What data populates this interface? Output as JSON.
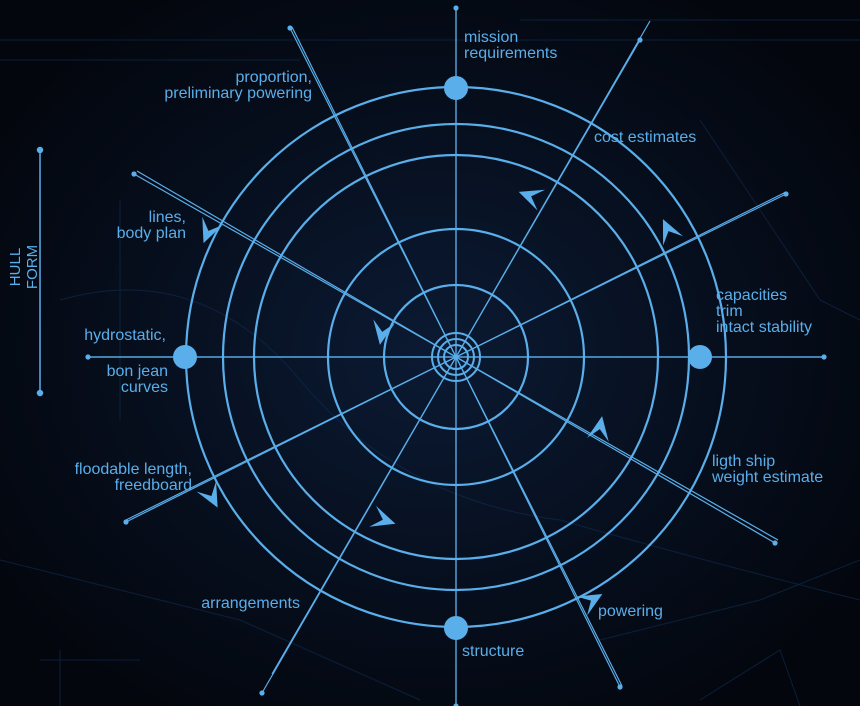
{
  "side_label": "HULL FORM",
  "labels": {
    "mission": [
      "mission",
      "requirements"
    ],
    "cost": [
      "cost estimates"
    ],
    "capacities": [
      "capacities",
      "trim",
      "intact stability"
    ],
    "lightship": [
      "ligth ship",
      "weight estimate"
    ],
    "powering": [
      "powering"
    ],
    "structure": [
      "structure"
    ],
    "arrangements": [
      "arrangements"
    ],
    "floodable": [
      "floodable length,",
      "freedboard"
    ],
    "hydrostatic": [
      "hydrostatic,"
    ],
    "bonjean": [
      "bon jean",
      "curves"
    ],
    "lines": [
      "lines,",
      "body plan"
    ],
    "proportion": [
      "proportion,",
      "preliminary powering"
    ]
  },
  "colors": {
    "line": "#5aaeea",
    "background": "#03060d"
  }
}
